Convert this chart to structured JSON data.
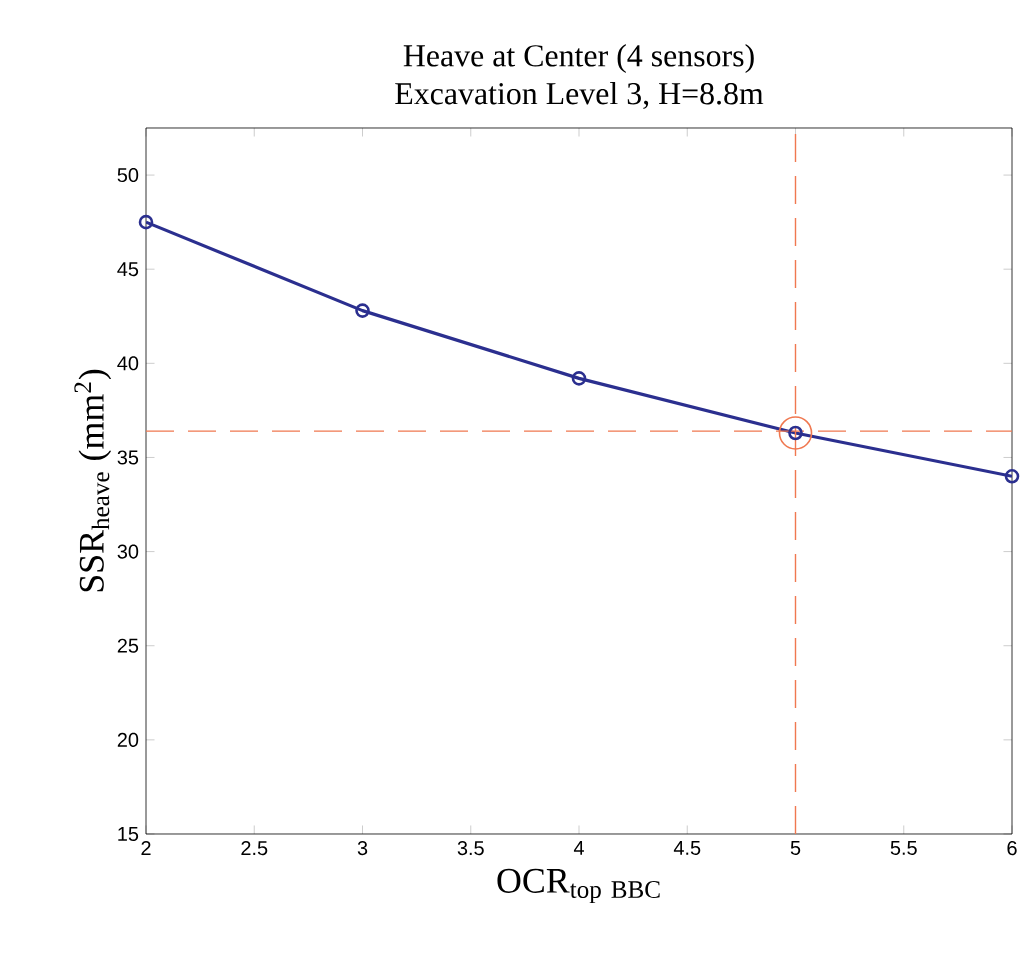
{
  "chart_data": {
    "type": "line",
    "title": "Heave at Center (4 sensors)",
    "subtitle": "Excavation Level 3, H=8.8m",
    "xlabel": "\\mathrm{OCR}_{\\mathrm{top\\ BBC}}",
    "ylabel": "SSR$_{heave}$ (mm$^{2}$)",
    "x": [
      2,
      3,
      4,
      5,
      6
    ],
    "series": [
      {
        "color": "#2b2f8f",
        "marker": "circle",
        "line_style": "solid",
        "values": [
          47.5,
          42.8,
          39.2,
          36.3,
          34.0
        ]
      },
      {
        "type": "scatter",
        "x": [
          5
        ],
        "color": "#f07850",
        "marker": "circle",
        "values": [
          36.3
        ]
      }
    ],
    "ref_lines": [
      {
        "axis": "y",
        "value": 36.4,
        "color": "#f07850",
        "line_style": "dashed"
      },
      {
        "axis": "x",
        "value": 5,
        "color": "#f07850",
        "line_style": "dashed"
      }
    ],
    "xlim": [
      2,
      6
    ],
    "ylim": [
      15,
      52.5
    ],
    "xticks": [
      2,
      2.5,
      3,
      3.5,
      4,
      4.5,
      5,
      5.5,
      6
    ],
    "yticks": [
      15,
      20,
      25,
      30,
      35,
      40,
      45,
      50
    ],
    "grid": false
  }
}
